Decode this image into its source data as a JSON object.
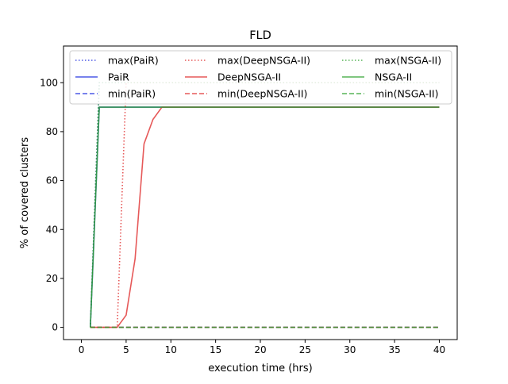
{
  "chart_data": {
    "type": "line",
    "title": "FLD",
    "xlabel": "execution time (hrs)",
    "ylabel": "% of covered clusters",
    "xlim": [
      -2,
      42
    ],
    "ylim": [
      -5,
      115
    ],
    "xticks": [
      0,
      5,
      10,
      15,
      20,
      25,
      30,
      35,
      40
    ],
    "yticks": [
      0,
      20,
      40,
      60,
      80,
      100
    ],
    "grid": false,
    "legend_position": "top",
    "legend_columns": 3,
    "series": [
      {
        "name": "max(PaiR)",
        "color": "#1f2fe0",
        "style": "dotted",
        "x": [
          1,
          2,
          40
        ],
        "y": [
          0,
          100,
          100
        ]
      },
      {
        "name": "PaiR",
        "color": "#1f2fe0",
        "style": "solid",
        "x": [
          1,
          2,
          40
        ],
        "y": [
          0,
          90,
          90
        ]
      },
      {
        "name": "min(PaiR)",
        "color": "#1f2fe0",
        "style": "dashed",
        "x": [
          1,
          40
        ],
        "y": [
          0,
          0
        ]
      },
      {
        "name": "max(DeepNSGA-II)",
        "color": "#e03030",
        "style": "dotted",
        "x": [
          1,
          4,
          5,
          40
        ],
        "y": [
          0,
          0,
          100,
          100
        ]
      },
      {
        "name": "DeepNSGA-II",
        "color": "#e03030",
        "style": "solid",
        "x": [
          1,
          4,
          5,
          6,
          7,
          8,
          9,
          40
        ],
        "y": [
          0,
          0,
          5,
          28,
          75,
          85,
          90,
          90
        ]
      },
      {
        "name": "min(DeepNSGA-II)",
        "color": "#e03030",
        "style": "dashed",
        "x": [
          1,
          40
        ],
        "y": [
          0,
          0
        ]
      },
      {
        "name": "max(NSGA-II)",
        "color": "#2ca02c",
        "style": "dotted",
        "x": [
          1,
          2,
          40
        ],
        "y": [
          0,
          100,
          100
        ]
      },
      {
        "name": "NSGA-II",
        "color": "#2ca02c",
        "style": "solid",
        "x": [
          1,
          2,
          40
        ],
        "y": [
          0,
          90,
          90
        ]
      },
      {
        "name": "min(NSGA-II)",
        "color": "#2ca02c",
        "style": "dashed",
        "x": [
          1,
          40
        ],
        "y": [
          0,
          0
        ]
      }
    ]
  }
}
